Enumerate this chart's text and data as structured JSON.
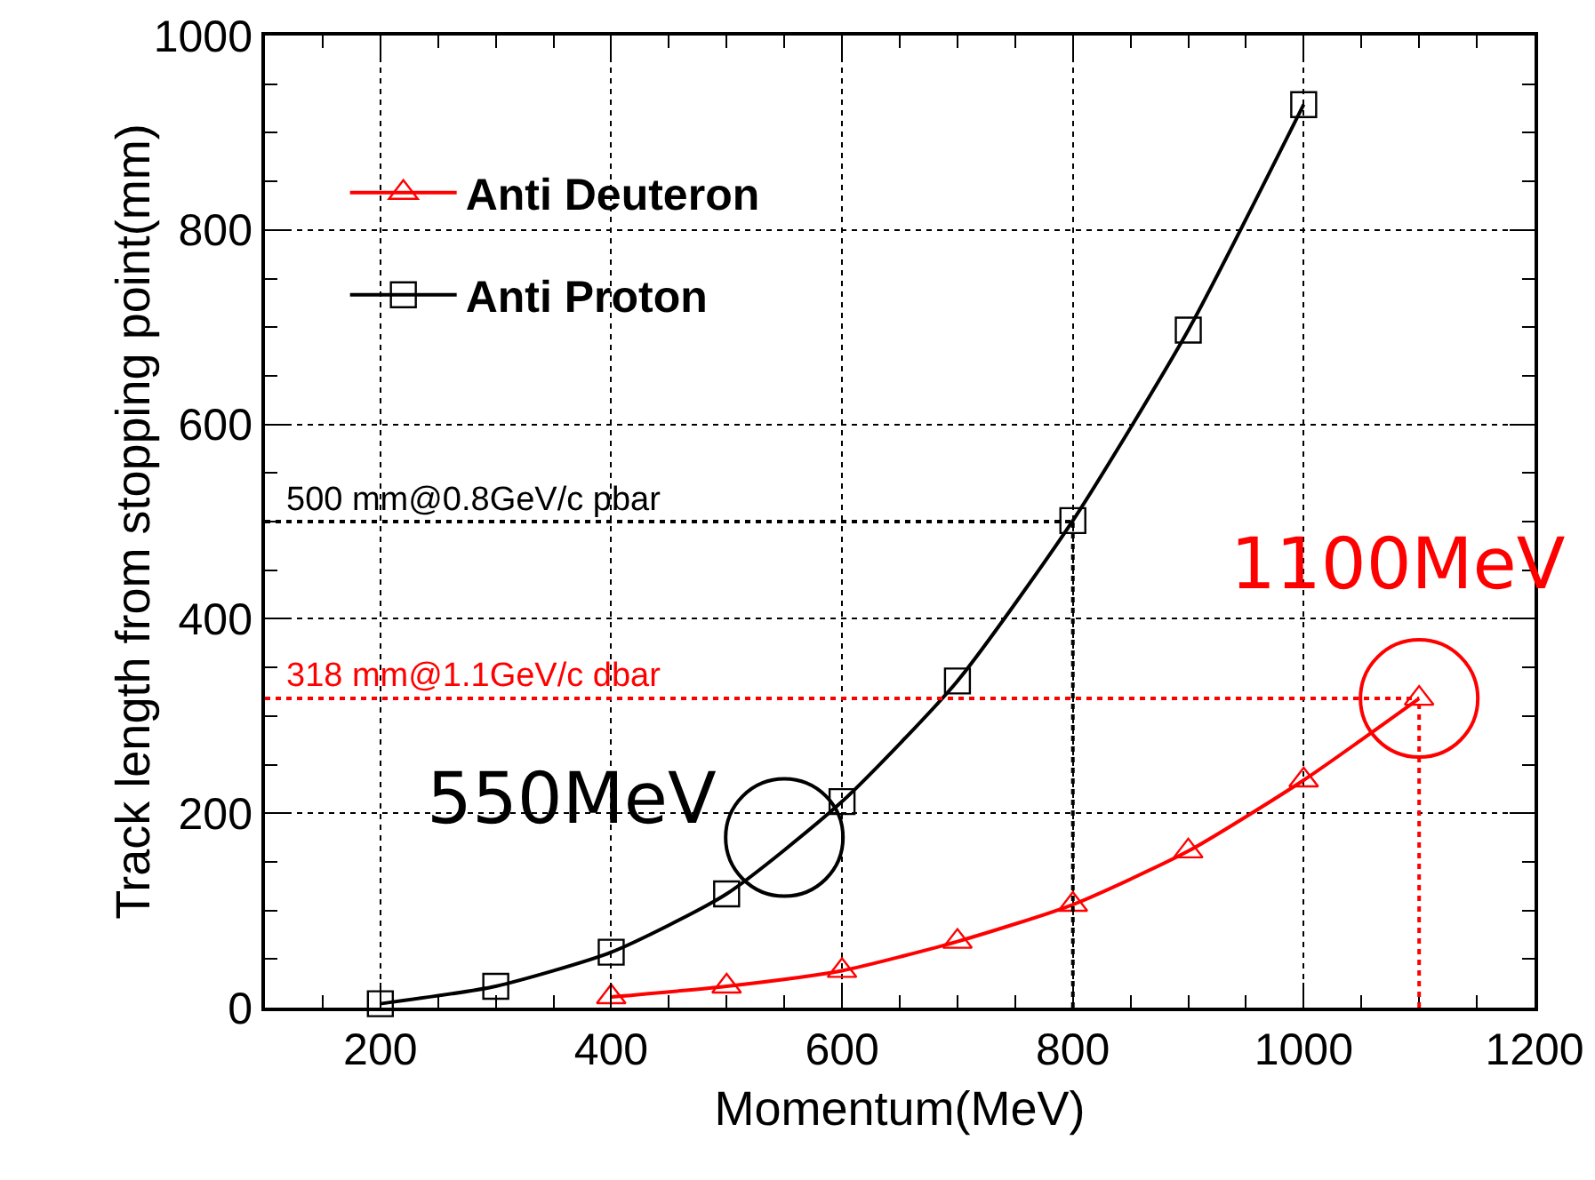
{
  "chart_data": {
    "type": "line",
    "xlabel": "Momentum(MeV)",
    "ylabel": "Track length from stopping point(mm)",
    "xlim": [
      100,
      1200
    ],
    "xticks": [
      200,
      400,
      600,
      800,
      1000,
      1200
    ],
    "ylim": [
      0,
      1000
    ],
    "yticks": [
      0,
      200,
      400,
      600,
      800,
      1000
    ],
    "grid": true,
    "legend": "top left",
    "line_style": "solid",
    "series": [
      {
        "name": "Anti Deuteron",
        "color": "#ff0000",
        "marker": "triangle",
        "x": [
          400,
          500,
          600,
          700,
          800,
          900,
          1000,
          1100
        ],
        "values": [
          11,
          22,
          38,
          68,
          106,
          161,
          234,
          318
        ]
      },
      {
        "name": "Anti Proton",
        "color": "#000000",
        "marker": "square",
        "x": [
          200,
          300,
          400,
          500,
          600,
          700,
          800,
          900,
          1000
        ],
        "values": [
          4,
          22,
          57,
          117,
          212,
          336,
          501,
          697,
          929
        ]
      }
    ],
    "ref_lines": [
      {
        "axis": "y",
        "value": 500,
        "label": "500 mm@0.8GeV/c pbar",
        "color": "#000000",
        "line_style": "dotted"
      },
      {
        "axis": "x",
        "value": 800,
        "color": "#000000",
        "line_style": "dotted"
      },
      {
        "axis": "y",
        "value": 318,
        "label": "318 mm@1.1GeV/c dbar",
        "color": "#ff0000",
        "line_style": "dotted"
      },
      {
        "axis": "x",
        "value": 1100,
        "color": "#ff0000",
        "line_style": "dotted"
      }
    ],
    "annotations": [
      {
        "text": "550MeV",
        "x": 550,
        "y": 175
      },
      {
        "text": "1100MeV",
        "x": 1100,
        "y": 318
      }
    ]
  }
}
